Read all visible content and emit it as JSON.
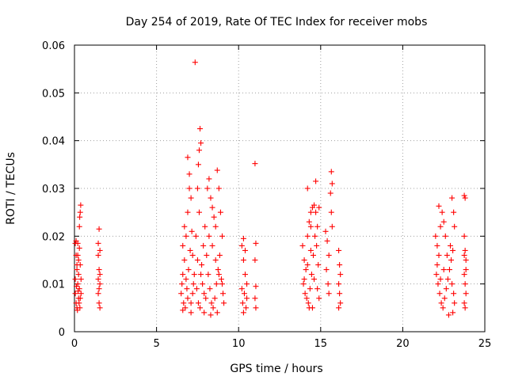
{
  "chart_data": {
    "type": "scatter",
    "title": "Day 254 of 2019, Rate Of TEC Index for receiver mobs",
    "xlabel": "GPS time / hours",
    "ylabel": "ROTI / TECUs",
    "xlim": [
      0,
      25
    ],
    "ylim": [
      0,
      0.06
    ],
    "xticks": [
      "0",
      "5",
      "10",
      "15",
      "20",
      "25"
    ],
    "yticks": [
      "0",
      "0.01",
      "0.02",
      "0.03",
      "0.04",
      "0.05",
      "0.06"
    ],
    "grid": true,
    "marker": "+",
    "color": "#ff0000",
    "series": [
      {
        "name": "ROTI",
        "points": [
          [
            0.05,
            0.0185
          ],
          [
            0.1,
            0.016
          ],
          [
            0.15,
            0.014
          ],
          [
            0.2,
            0.0185
          ],
          [
            0.25,
            0.012
          ],
          [
            0.3,
            0.009
          ],
          [
            0.35,
            0.007
          ],
          [
            0.05,
            0.008
          ],
          [
            0.1,
            0.006
          ],
          [
            0.15,
            0.005
          ],
          [
            0.2,
            0.01
          ],
          [
            0.25,
            0.015
          ],
          [
            0.3,
            0.0175
          ],
          [
            0.35,
            0.014
          ],
          [
            0.4,
            0.011
          ],
          [
            0.1,
            0.019
          ],
          [
            0.2,
            0.016
          ],
          [
            0.3,
            0.022
          ],
          [
            0.35,
            0.025
          ],
          [
            0.38,
            0.0265
          ],
          [
            0.32,
            0.024
          ],
          [
            0.15,
            0.013
          ],
          [
            0.25,
            0.007
          ],
          [
            0.4,
            0.008
          ],
          [
            0.05,
            0.011
          ],
          [
            0.12,
            0.0095
          ],
          [
            0.22,
            0.0085
          ],
          [
            0.28,
            0.006
          ],
          [
            0.33,
            0.005
          ],
          [
            0.18,
            0.0045
          ],
          [
            1.45,
            0.016
          ],
          [
            1.5,
            0.013
          ],
          [
            1.55,
            0.01
          ],
          [
            1.45,
            0.008
          ],
          [
            1.5,
            0.006
          ],
          [
            1.55,
            0.005
          ],
          [
            1.5,
            0.0215
          ],
          [
            1.45,
            0.0185
          ],
          [
            1.55,
            0.012
          ],
          [
            1.5,
            0.009
          ],
          [
            1.45,
            0.011
          ],
          [
            1.55,
            0.017
          ],
          [
            6.5,
            0.008
          ],
          [
            6.6,
            0.012
          ],
          [
            6.7,
            0.015
          ],
          [
            6.8,
            0.02
          ],
          [
            6.9,
            0.025
          ],
          [
            7.0,
            0.03
          ],
          [
            7.1,
            0.028
          ],
          [
            6.55,
            0.01
          ],
          [
            6.65,
            0.006
          ],
          [
            6.75,
            0.005
          ],
          [
            6.85,
            0.009
          ],
          [
            6.95,
            0.013
          ],
          [
            7.05,
            0.017
          ],
          [
            7.15,
            0.021
          ],
          [
            7.25,
            0.01
          ],
          [
            6.9,
            0.0365
          ],
          [
            7.0,
            0.033
          ],
          [
            7.2,
            0.016
          ],
          [
            6.6,
            0.018
          ],
          [
            6.7,
            0.022
          ],
          [
            6.8,
            0.011
          ],
          [
            6.9,
            0.007
          ],
          [
            7.1,
            0.006
          ],
          [
            7.2,
            0.008
          ],
          [
            7.3,
            0.012
          ],
          [
            7.35,
            0.0564
          ],
          [
            7.5,
            0.03
          ],
          [
            7.6,
            0.038
          ],
          [
            7.65,
            0.0425
          ],
          [
            7.7,
            0.0395
          ],
          [
            7.55,
            0.035
          ],
          [
            7.6,
            0.025
          ],
          [
            7.4,
            0.02
          ],
          [
            7.5,
            0.015
          ],
          [
            7.7,
            0.012
          ],
          [
            7.8,
            0.01
          ],
          [
            7.9,
            0.008
          ],
          [
            8.0,
            0.007
          ],
          [
            7.45,
            0.009
          ],
          [
            7.55,
            0.006
          ],
          [
            7.65,
            0.005
          ],
          [
            7.75,
            0.014
          ],
          [
            7.85,
            0.018
          ],
          [
            7.95,
            0.022
          ],
          [
            8.05,
            0.016
          ],
          [
            8.1,
            0.03
          ],
          [
            8.2,
            0.032
          ],
          [
            8.3,
            0.028
          ],
          [
            8.4,
            0.026
          ],
          [
            8.5,
            0.024
          ],
          [
            8.6,
            0.022
          ],
          [
            8.7,
            0.0338
          ],
          [
            8.8,
            0.03
          ],
          [
            8.9,
            0.025
          ],
          [
            9.0,
            0.02
          ],
          [
            8.15,
            0.012
          ],
          [
            8.25,
            0.009
          ],
          [
            8.35,
            0.006
          ],
          [
            8.45,
            0.005
          ],
          [
            8.55,
            0.007
          ],
          [
            8.65,
            0.01
          ],
          [
            8.75,
            0.013
          ],
          [
            8.85,
            0.016
          ],
          [
            8.95,
            0.011
          ],
          [
            9.05,
            0.008
          ],
          [
            9.1,
            0.006
          ],
          [
            8.2,
            0.02
          ],
          [
            8.4,
            0.018
          ],
          [
            8.6,
            0.015
          ],
          [
            8.8,
            0.012
          ],
          [
            9.0,
            0.01
          ],
          [
            7.9,
            0.004
          ],
          [
            8.3,
            0.0035
          ],
          [
            8.7,
            0.004
          ],
          [
            7.1,
            0.004
          ],
          [
            6.6,
            0.0045
          ],
          [
            10.2,
            0.018
          ],
          [
            10.3,
            0.015
          ],
          [
            10.4,
            0.012
          ],
          [
            10.5,
            0.01
          ],
          [
            10.35,
            0.008
          ],
          [
            10.25,
            0.006
          ],
          [
            10.45,
            0.005
          ],
          [
            10.3,
            0.0195
          ],
          [
            10.4,
            0.017
          ],
          [
            10.2,
            0.009
          ],
          [
            10.5,
            0.007
          ],
          [
            10.3,
            0.004
          ],
          [
            11.0,
            0.0352
          ],
          [
            11.05,
            0.0185
          ],
          [
            11.0,
            0.015
          ],
          [
            11.05,
            0.0095
          ],
          [
            11.0,
            0.007
          ],
          [
            11.05,
            0.005
          ],
          [
            13.9,
            0.018
          ],
          [
            14.0,
            0.015
          ],
          [
            14.1,
            0.013
          ],
          [
            14.2,
            0.02
          ],
          [
            14.3,
            0.023
          ],
          [
            14.4,
            0.025
          ],
          [
            14.5,
            0.026
          ],
          [
            14.6,
            0.0265
          ],
          [
            14.7,
            0.025
          ],
          [
            14.8,
            0.022
          ],
          [
            13.95,
            0.01
          ],
          [
            14.05,
            0.008
          ],
          [
            14.15,
            0.007
          ],
          [
            14.25,
            0.006
          ],
          [
            14.35,
            0.009
          ],
          [
            14.45,
            0.012
          ],
          [
            14.55,
            0.016
          ],
          [
            14.65,
            0.02
          ],
          [
            14.75,
            0.018
          ],
          [
            14.85,
            0.014
          ],
          [
            14.0,
            0.011
          ],
          [
            14.2,
            0.014
          ],
          [
            14.4,
            0.017
          ],
          [
            14.6,
            0.011
          ],
          [
            14.8,
            0.009
          ],
          [
            14.9,
            0.007
          ],
          [
            14.5,
            0.005
          ],
          [
            14.3,
            0.005
          ],
          [
            14.2,
            0.03
          ],
          [
            14.7,
            0.0315
          ],
          [
            14.4,
            0.022
          ],
          [
            14.9,
            0.026
          ],
          [
            15.3,
            0.021
          ],
          [
            15.4,
            0.019
          ],
          [
            15.5,
            0.016
          ],
          [
            15.35,
            0.013
          ],
          [
            15.45,
            0.01
          ],
          [
            15.5,
            0.008
          ],
          [
            15.65,
            0.0335
          ],
          [
            15.7,
            0.031
          ],
          [
            15.6,
            0.029
          ],
          [
            15.65,
            0.025
          ],
          [
            15.7,
            0.022
          ],
          [
            16.1,
            0.017
          ],
          [
            16.15,
            0.014
          ],
          [
            16.2,
            0.012
          ],
          [
            16.1,
            0.01
          ],
          [
            16.15,
            0.008
          ],
          [
            16.2,
            0.006
          ],
          [
            16.1,
            0.005
          ],
          [
            22.0,
            0.02
          ],
          [
            22.1,
            0.018
          ],
          [
            22.2,
            0.016
          ],
          [
            22.3,
            0.022
          ],
          [
            22.4,
            0.025
          ],
          [
            22.5,
            0.023
          ],
          [
            22.6,
            0.02
          ],
          [
            22.05,
            0.012
          ],
          [
            22.15,
            0.01
          ],
          [
            22.25,
            0.008
          ],
          [
            22.35,
            0.006
          ],
          [
            22.45,
            0.005
          ],
          [
            22.55,
            0.007
          ],
          [
            22.65,
            0.009
          ],
          [
            22.75,
            0.011
          ],
          [
            22.85,
            0.013
          ],
          [
            22.95,
            0.015
          ],
          [
            23.05,
            0.017
          ],
          [
            22.1,
            0.014
          ],
          [
            22.3,
            0.011
          ],
          [
            22.5,
            0.013
          ],
          [
            22.7,
            0.016
          ],
          [
            22.9,
            0.018
          ],
          [
            23.0,
            0.01
          ],
          [
            23.1,
            0.008
          ],
          [
            23.15,
            0.006
          ],
          [
            23.05,
            0.004
          ],
          [
            22.8,
            0.0035
          ],
          [
            22.2,
            0.0263
          ],
          [
            23.0,
            0.028
          ],
          [
            23.1,
            0.025
          ],
          [
            23.15,
            0.022
          ],
          [
            23.75,
            0.0285
          ],
          [
            23.8,
            0.028
          ],
          [
            23.75,
            0.02
          ],
          [
            23.8,
            0.017
          ],
          [
            23.85,
            0.015
          ],
          [
            23.75,
            0.012
          ],
          [
            23.8,
            0.01
          ],
          [
            23.85,
            0.008
          ],
          [
            23.75,
            0.006
          ],
          [
            23.8,
            0.005
          ],
          [
            23.85,
            0.013
          ],
          [
            23.75,
            0.016
          ]
        ]
      }
    ]
  }
}
